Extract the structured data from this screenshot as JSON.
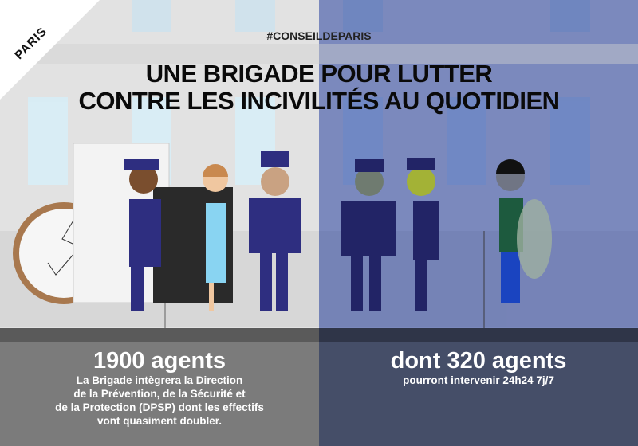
{
  "brand": {
    "logo_text": "PARIS"
  },
  "hashtag": "#CONSEILDEPARIS",
  "title": {
    "line1": "UNE BRIGADE POUR LUTTER",
    "line2": "CONTRE LES INCIVILITÉS AU QUOTIDIEN"
  },
  "left_panel": {
    "headline": "1900 agents",
    "lines": [
      "La Brigade intègrera la Direction",
      "de la Prévention, de la Sécurité et",
      "de la Protection (DPSP) dont les effectifs",
      "vont quasiment doubler."
    ]
  },
  "right_panel": {
    "headline": "dont 320 agents",
    "lines": [
      "pourront intervenir 24h24 7j/7"
    ]
  },
  "colors": {
    "left_bg": "#e2e2e2",
    "right_bg": "#7b89bd",
    "left_panel": "#7b7b7b",
    "right_panel": "#454e68",
    "uniform": "#2e2e80"
  }
}
